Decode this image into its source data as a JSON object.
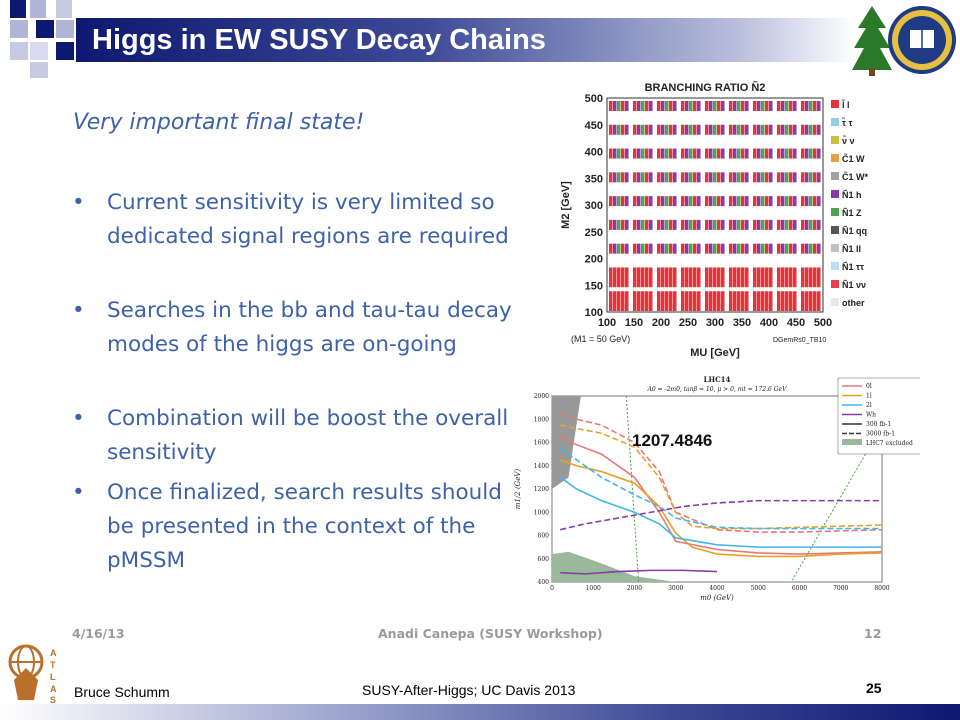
{
  "slide": {
    "title": "Higgs in EW SUSY Decay Chains",
    "subtitle": "Very important final state!",
    "bullets": [
      "Current sensitivity is very limited so dedicated signal regions are required",
      "Searches in the bb and tau-tau decay modes of the higgs are on-going",
      "Combination will be boost the overall sensitivity",
      "Once finalized, search results should be presented in the context of the pMSSM"
    ],
    "inner_footer": {
      "date": "4/16/13",
      "center": "Anadi Canepa (SUSY Workshop)",
      "page": "12"
    },
    "footer": {
      "author": "Bruce Schumm",
      "center": "SUSY-After-Higgs; UC Davis 2013",
      "page": "25"
    },
    "logo_label": "ATLAS",
    "colors": {
      "title_bar": "#0d1870",
      "body_text": "#3e62a8"
    }
  },
  "chart_data": [
    {
      "type": "heatmap",
      "title": "BRANCHING RATIO Ñ2",
      "xlabel": "MU [GeV]",
      "ylabel": "M2 [GeV]",
      "x_ticks": [
        "100",
        "150",
        "200",
        "250",
        "300",
        "350",
        "400",
        "450",
        "500"
      ],
      "y_ticks": [
        "100",
        "150",
        "200",
        "250",
        "300",
        "350",
        "400",
        "450",
        "500"
      ],
      "annotation_left": "(M1 = 50 GeV)",
      "annotation_right": "DGemRs0_TB10",
      "legend": [
        {
          "label": "l̃ l",
          "color": "#e8323a"
        },
        {
          "label": "τ̃ τ",
          "color": "#8fd0e8"
        },
        {
          "label": "ν̃ ν",
          "color": "#c8c040"
        },
        {
          "label": "C̃1 W",
          "color": "#e8a040"
        },
        {
          "label": "C̃1 W*",
          "color": "#a0a0a0"
        },
        {
          "label": "Ñ1 h",
          "color": "#8a3aa8"
        },
        {
          "label": "Ñ1 Z",
          "color": "#4aa84a"
        },
        {
          "label": "Ñ1 qq",
          "color": "#555555"
        },
        {
          "label": "Ñ1 ll",
          "color": "#c0c0c0"
        },
        {
          "label": "Ñ1 ττ",
          "color": "#b8e0f0"
        },
        {
          "label": "Ñ1 νν",
          "color": "#e84050"
        },
        {
          "label": "other",
          "color": "#e8e8e8"
        }
      ]
    },
    {
      "type": "line",
      "title": "LHC14",
      "subtitle": "A0 = -2m0, tanβ = 10, μ > 0, mt = 172.6 GeV",
      "annotation": "1207.4846",
      "xlabel": "m0 (GeV)",
      "ylabel": "m1/2 (GeV)",
      "xlim": [
        0,
        8000
      ],
      "ylim": [
        400,
        2000
      ],
      "x_ticks": [
        "0",
        "1000",
        "2000",
        "3000",
        "4000",
        "5000",
        "6000",
        "7000",
        "8000"
      ],
      "y_ticks": [
        "400",
        "600",
        "800",
        "1000",
        "1200",
        "1400",
        "1600",
        "1800",
        "2000"
      ],
      "legend": [
        "0l",
        "1l",
        "2l",
        "Wh",
        "300 fb-1",
        "3000 fb-1",
        "LHC7 excluded"
      ],
      "series": [
        {
          "name": "0l",
          "color": "#e87878",
          "dashed": false,
          "x": [
            200,
            600,
            1200,
            2000,
            2600,
            3000,
            4000,
            5000,
            6000,
            7000,
            8000
          ],
          "y": [
            1650,
            1580,
            1500,
            1300,
            1000,
            750,
            680,
            650,
            640,
            650,
            660
          ]
        },
        {
          "name": "0l",
          "color": "#e87878",
          "dashed": true,
          "x": [
            200,
            600,
            1200,
            2000,
            2600,
            3000,
            4000,
            5000,
            6000,
            7000,
            8000
          ],
          "y": [
            1850,
            1800,
            1750,
            1600,
            1350,
            1000,
            850,
            830,
            830,
            840,
            850
          ]
        },
        {
          "name": "1l",
          "color": "#e8a028",
          "dashed": false,
          "x": [
            200,
            600,
            1200,
            2000,
            2600,
            3000,
            3400,
            4000,
            5000,
            6000,
            7000,
            8000
          ],
          "y": [
            1450,
            1400,
            1350,
            1250,
            1050,
            820,
            700,
            640,
            620,
            620,
            640,
            650
          ]
        },
        {
          "name": "1l",
          "color": "#e8a028",
          "dashed": true,
          "x": [
            200,
            600,
            1200,
            2000,
            2600,
            3000,
            3400,
            4000,
            5000,
            6000,
            7000,
            8000
          ],
          "y": [
            1750,
            1720,
            1680,
            1560,
            1300,
            1000,
            880,
            860,
            860,
            870,
            880,
            890
          ]
        },
        {
          "name": "2l",
          "color": "#40b8e8",
          "dashed": false,
          "x": [
            200,
            600,
            1200,
            2000,
            2600,
            3000,
            4000,
            5000,
            6000,
            7000,
            8000
          ],
          "y": [
            1300,
            1200,
            1100,
            1000,
            900,
            780,
            720,
            700,
            700,
            700,
            700
          ]
        },
        {
          "name": "2l",
          "color": "#40b8e8",
          "dashed": true,
          "x": [
            200,
            600,
            1200,
            2000,
            2600,
            3000,
            4000,
            5000,
            6000,
            7000,
            8000
          ],
          "y": [
            1550,
            1450,
            1300,
            1150,
            1050,
            950,
            870,
            860,
            860,
            860,
            860
          ]
        },
        {
          "name": "Wh",
          "color": "#8a3aa8",
          "dashed": false,
          "x": [
            200,
            800,
            1600,
            2400,
            3200,
            4000
          ],
          "y": [
            480,
            470,
            490,
            500,
            500,
            490
          ]
        },
        {
          "name": "Wh",
          "color": "#8a3aa8",
          "dashed": true,
          "x": [
            200,
            800,
            1600,
            2400,
            3200,
            4000,
            5000,
            6000,
            7000,
            8000
          ],
          "y": [
            850,
            900,
            950,
            1000,
            1050,
            1080,
            1100,
            1100,
            1100,
            1100
          ]
        }
      ]
    }
  ]
}
